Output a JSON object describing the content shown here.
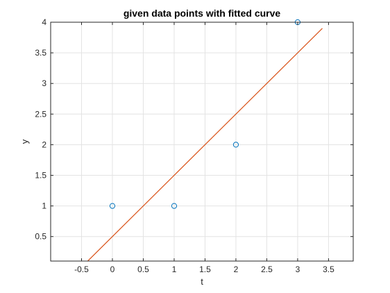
{
  "chart_data": {
    "type": "scatter",
    "title": "given data points with fitted curve",
    "xlabel": "t",
    "ylabel": "y",
    "xlim": [
      -1,
      3.9
    ],
    "ylim": [
      0.1,
      4
    ],
    "xticks": [
      -0.5,
      0,
      0.5,
      1,
      1.5,
      2,
      2.5,
      3,
      3.5
    ],
    "yticks": [
      0.5,
      1,
      1.5,
      2,
      2.5,
      3,
      3.5,
      4
    ],
    "grid": true,
    "series": [
      {
        "type": "scatter",
        "marker": "circle",
        "color": "#0072BD",
        "points": [
          [
            0,
            1
          ],
          [
            1,
            1
          ],
          [
            2,
            2
          ],
          [
            3,
            4
          ]
        ]
      },
      {
        "type": "line",
        "color": "#D95319",
        "points": [
          [
            -0.4,
            0.1
          ],
          [
            3.4,
            3.9
          ]
        ]
      }
    ]
  }
}
